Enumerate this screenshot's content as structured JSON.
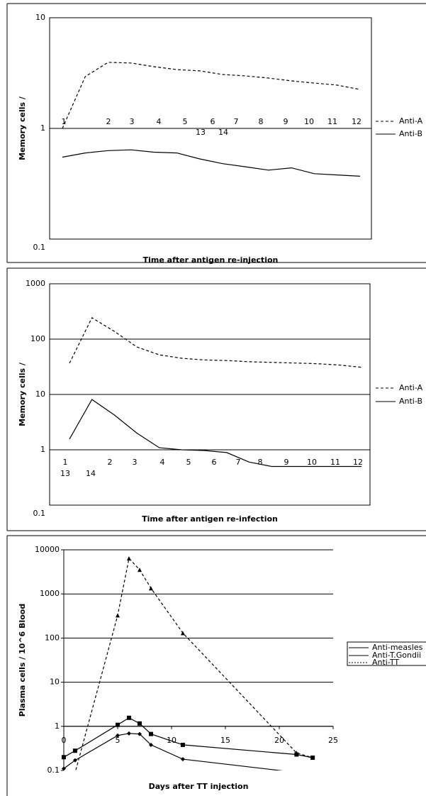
{
  "chart_data": [
    {
      "type": "line",
      "y_label": "Memory  cells /",
      "x_label": "Time  after antigen re-injection",
      "x_labels": [
        "1",
        "2",
        "3",
        "4",
        "5",
        "6",
        "7",
        "8",
        "9",
        "10",
        "11",
        "12",
        "13",
        "14"
      ],
      "series": [
        {
          "name": "Anti-A",
          "color": "#000000",
          "dash": true,
          "values": [
            1,
            2.94,
            3.95,
            3.9,
            3.61,
            3.4,
            3.31,
            3.07,
            2.98,
            2.85,
            2.69,
            2.57,
            2.46,
            2.25
          ]
        },
        {
          "name": "Anti-B",
          "color": "#000000",
          "dash": false,
          "values": [
            0.55,
            0.6,
            0.63,
            0.64,
            0.61,
            0.6,
            0.53,
            0.48,
            0.45,
            0.42,
            0.44,
            0.39,
            0.38,
            0.37
          ]
        }
      ],
      "ylim": [
        0.1,
        10
      ],
      "yticks": [
        0.1,
        1,
        10
      ],
      "log_scale": true,
      "grid": true
    },
    {
      "type": "line",
      "y_label": "Memory  cells /",
      "x_label": "Time   after antigen re-infection",
      "x_labels": [
        "1",
        "2",
        "3",
        "4",
        "5",
        "6",
        "7",
        "8",
        "9",
        "10",
        "11",
        "12",
        "13",
        "14"
      ],
      "series": [
        {
          "name": "Anti-A",
          "color": "#000000",
          "dash": true,
          "values": [
            36.7,
            243,
            138,
            72,
            52,
            45,
            42,
            41,
            39,
            38,
            37,
            36,
            34,
            31
          ]
        },
        {
          "name": "Anti-B",
          "color": "#000000",
          "dash": false,
          "values": [
            1.56,
            8.1,
            4.25,
            2.0,
            1.09,
            1.0,
            0.97,
            0.89,
            0.6,
            0.5,
            0.5,
            0.5,
            0.5,
            0.5
          ]
        }
      ],
      "ylim": [
        0.1,
        1000
      ],
      "yticks": [
        0.1,
        1,
        10,
        100,
        1000
      ],
      "log_scale": true,
      "grid": true
    },
    {
      "type": "scatter-line",
      "y_label": "Plasma  cells / 10^6 Blood",
      "x_label": "Days   after  TT injection",
      "series": [
        {
          "name": "Anti-measles",
          "color": "#000000",
          "dash": false,
          "marker": "square",
          "x": [
            0,
            1.05,
            5,
            6.05,
            7.04,
            8.09,
            11.05,
            21.6,
            23.1
          ],
          "values": [
            0.2,
            0.28,
            1.08,
            1.56,
            1.16,
            0.67,
            0.38,
            0.23,
            0.195
          ]
        },
        {
          "name": "Anti-T.Gondii",
          "color": "#000000",
          "dash": false,
          "marker": "diamond",
          "x": [
            0,
            1.05,
            5,
            6.05,
            7.04,
            8.09,
            11.05,
            21.6
          ],
          "values": [
            0.11,
            0.17,
            0.62,
            0.69,
            0.67,
            0.38,
            0.18,
            0.09
          ]
        },
        {
          "name": "Anti-TT",
          "color": "#000000",
          "dash": true,
          "marker": "triangle",
          "x": [
            1,
            5,
            6.05,
            7.04,
            8.09,
            11.05,
            21.6,
            23.1
          ],
          "values": [
            0.08,
            328,
            6400,
            3530,
            1345,
            130,
            0.25,
            0.195
          ]
        }
      ],
      "xlim": [
        0,
        25
      ],
      "xticks": [
        0,
        5,
        10,
        15,
        20,
        25
      ],
      "ylim": [
        0.1,
        10000
      ],
      "yticks": [
        0.1,
        1,
        10,
        100,
        1000,
        10000
      ],
      "log_scale": true,
      "grid": true,
      "x_axis_at": 1
    }
  ]
}
